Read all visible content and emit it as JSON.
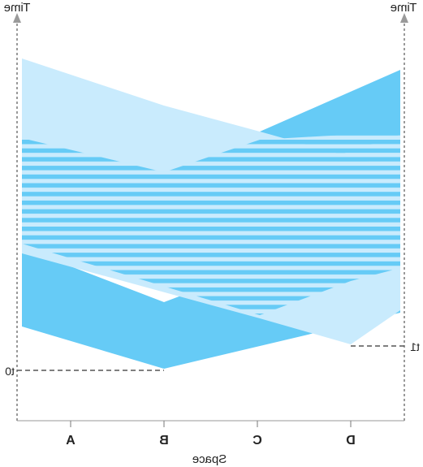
{
  "axes": {
    "left_title": "Time",
    "right_title": "Time",
    "x_title": "Space",
    "left_marker": "t0",
    "right_marker": "t1",
    "ticks": [
      "A",
      "B",
      "C",
      "D"
    ]
  },
  "colors": {
    "light_blue": "#c9ebfd",
    "dark_blue": "#66cbf6",
    "axis_gray": "#9a9a9a",
    "dash_gray": "#555555",
    "background": "#ffffff"
  }
}
